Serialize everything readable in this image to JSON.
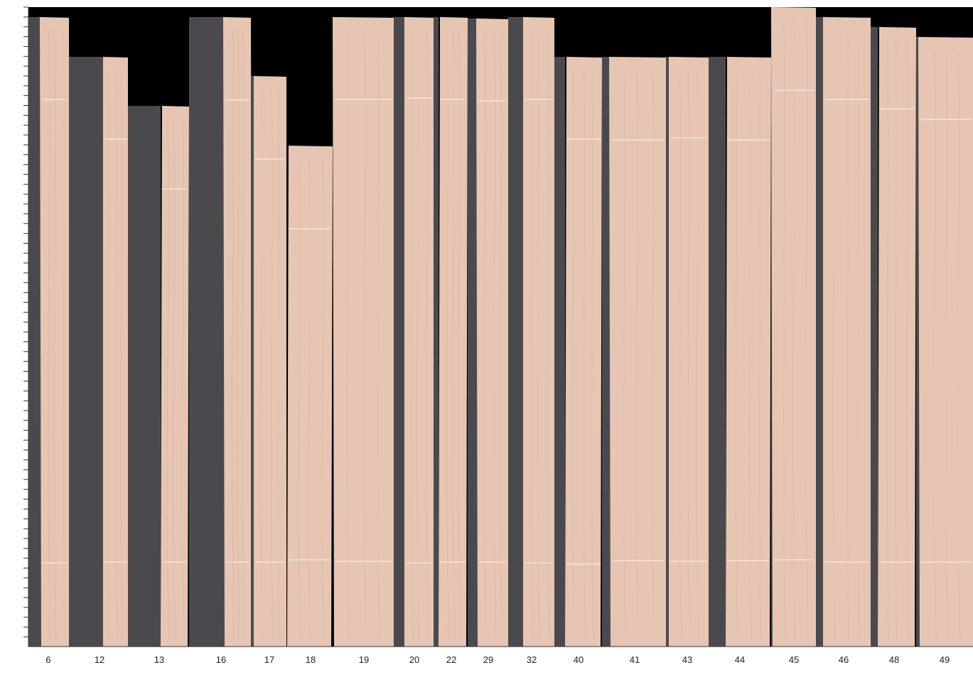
{
  "boards": [
    {
      "label": "6",
      "has_shadow": true
    },
    {
      "label": "12",
      "has_shadow": true
    },
    {
      "label": "13",
      "has_shadow": true
    },
    {
      "label": "16",
      "has_shadow": true
    },
    {
      "label": "17",
      "has_shadow": true
    },
    {
      "label": "18",
      "has_shadow": false
    },
    {
      "label": "19",
      "has_shadow": false
    },
    {
      "label": "20",
      "has_shadow": true
    },
    {
      "label": "22",
      "has_shadow": true
    },
    {
      "label": "29",
      "has_shadow": true
    },
    {
      "label": "32",
      "has_shadow": true
    },
    {
      "label": "40",
      "has_shadow": true
    },
    {
      "label": "41",
      "has_shadow": true
    },
    {
      "label": "43",
      "has_shadow": true
    },
    {
      "label": "44",
      "has_shadow": true
    },
    {
      "label": "45",
      "has_shadow": true
    },
    {
      "label": "46",
      "has_shadow": true
    },
    {
      "label": "48",
      "has_shadow": true
    },
    {
      "label": "49",
      "has_shadow": true
    }
  ],
  "colors": {
    "background": "#000000",
    "shadow": "#4a4a4e",
    "wood": "#e6c5b3",
    "wood_grain": "#d9b09d",
    "cut_line": "#f4ece6",
    "axis": "#333333"
  }
}
